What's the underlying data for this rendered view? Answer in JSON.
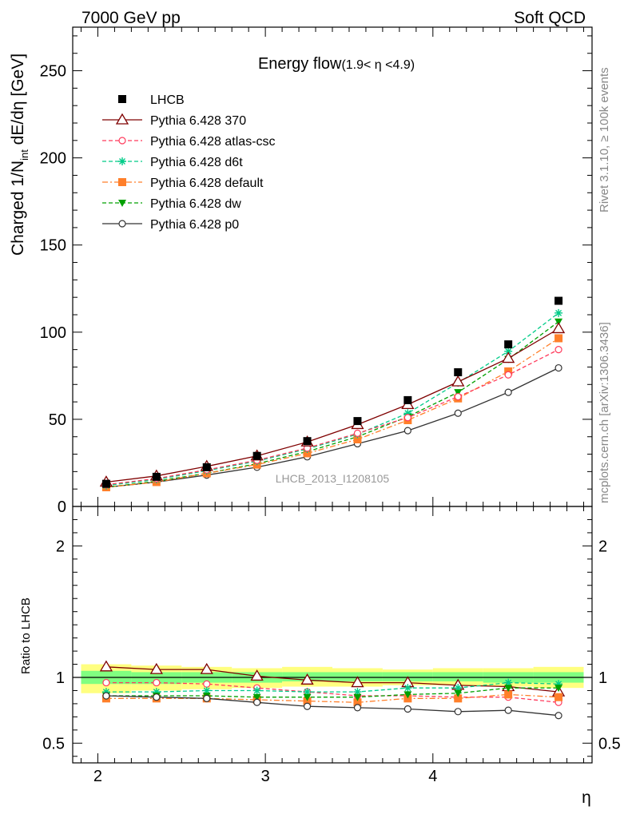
{
  "header": {
    "left": "7000 GeV pp",
    "right": "Soft QCD"
  },
  "side": {
    "rivet": "Rivet 3.1.10, ≥ 100k events",
    "mcplots": "mcplots.cern.ch [arXiv:1306.3436]"
  },
  "colors": {
    "data": "#000000",
    "p370": "#7f0000",
    "atlas": "#ff3b5c",
    "d6t": "#00cc88",
    "default": "#ff7f2a",
    "dw": "#00a000",
    "p0": "#333333",
    "band_yellow": "#ffff80",
    "band_green": "#80ff80"
  },
  "chart_data": [
    {
      "type": "line",
      "title": "Energy flow",
      "title_suffix": "(1.9< η <4.9)",
      "ylabel_main": "Charged 1/N",
      "ylabel_sub": "int",
      "ylabel_rest": " dE/dη [GeV]",
      "watermark": "LHCB_2013_I1208105",
      "xlim": [
        1.85,
        4.95
      ],
      "ylim": [
        0,
        275
      ],
      "yticks": [
        0,
        50,
        100,
        150,
        200,
        250
      ],
      "x": [
        2.05,
        2.35,
        2.65,
        2.95,
        3.25,
        3.55,
        3.85,
        4.15,
        4.45,
        4.75
      ],
      "series": [
        {
          "key": "data",
          "name": "LHCB",
          "marker": "square-filled",
          "values": [
            13.0,
            17.0,
            22.5,
            29.0,
            37.5,
            49.0,
            61.0,
            77.0,
            93.0,
            118.0
          ]
        },
        {
          "key": "p370",
          "name": "Pythia 6.428 370",
          "marker": "triangle-open",
          "line": "solid",
          "values": [
            14.0,
            17.5,
            23.0,
            29.0,
            37.0,
            47.0,
            58.5,
            71.5,
            85.0,
            102.0
          ]
        },
        {
          "key": "atlas",
          "name": "Pythia 6.428 atlas-csc",
          "marker": "circle-open",
          "line": "dashed",
          "values": [
            12.5,
            16.0,
            21.0,
            26.5,
            33.5,
            42.0,
            51.0,
            63.0,
            75.5,
            90.0
          ]
        },
        {
          "key": "d6t",
          "name": "Pythia 6.428 d6t",
          "marker": "star",
          "line": "dashed",
          "values": [
            12.0,
            15.5,
            20.5,
            26.0,
            33.0,
            41.5,
            53.5,
            71.0,
            89.0,
            111.0
          ]
        },
        {
          "key": "default",
          "name": "Pythia 6.428 default",
          "marker": "square-filled",
          "line": "dashdot",
          "values": [
            11.0,
            14.0,
            19.0,
            24.0,
            30.5,
            38.5,
            49.5,
            62.0,
            77.5,
            96.5
          ]
        },
        {
          "key": "dw",
          "name": "Pythia 6.428 dw",
          "marker": "triangle-down-filled",
          "line": "dashed",
          "values": [
            11.0,
            14.5,
            19.0,
            24.5,
            31.5,
            40.0,
            51.5,
            65.5,
            84.5,
            106.0
          ]
        },
        {
          "key": "p0",
          "name": "Pythia 6.428 p0",
          "marker": "circle-open",
          "line": "solid",
          "values": [
            11.0,
            14.0,
            18.0,
            22.5,
            28.5,
            36.0,
            43.5,
            53.5,
            65.5,
            79.5
          ]
        }
      ]
    },
    {
      "type": "line",
      "ylabel": "Ratio to LHCB",
      "xlabel": "η",
      "xlim": [
        1.85,
        4.95
      ],
      "ylim": [
        0.35,
        2.3
      ],
      "yticks": [
        0.5,
        1,
        2
      ],
      "ytick_labels": [
        "0.5",
        "1",
        "2"
      ],
      "xticks": [
        2,
        3,
        4
      ],
      "ref_line": 1,
      "band_edges": [
        1.9,
        2.2,
        2.5,
        2.8,
        3.1,
        3.4,
        3.7,
        4.0,
        4.3,
        4.6,
        4.9
      ],
      "band_yellow": [
        [
          0.88,
          1.1
        ],
        [
          0.9,
          1.09
        ],
        [
          0.91,
          1.08
        ],
        [
          0.92,
          1.07
        ],
        [
          0.93,
          1.08
        ],
        [
          0.93,
          1.07
        ],
        [
          0.94,
          1.06
        ],
        [
          0.94,
          1.07
        ],
        [
          0.93,
          1.07
        ],
        [
          0.92,
          1.08
        ]
      ],
      "band_green": [
        [
          0.95,
          1.05
        ],
        [
          0.95,
          1.04
        ],
        [
          0.96,
          1.04
        ],
        [
          0.96,
          1.04
        ],
        [
          0.97,
          1.04
        ],
        [
          0.97,
          1.04
        ],
        [
          0.97,
          1.04
        ],
        [
          0.97,
          1.04
        ],
        [
          0.96,
          1.04
        ],
        [
          0.96,
          1.04
        ]
      ],
      "x": [
        2.05,
        2.35,
        2.65,
        2.95,
        3.25,
        3.55,
        3.85,
        4.15,
        4.45,
        4.75
      ],
      "series": [
        {
          "key": "p370",
          "values": [
            1.08,
            1.06,
            1.06,
            1.01,
            0.98,
            0.96,
            0.96,
            0.94,
            0.93,
            0.89
          ]
        },
        {
          "key": "atlas",
          "values": [
            0.96,
            0.96,
            0.95,
            0.92,
            0.89,
            0.86,
            0.86,
            0.85,
            0.85,
            0.81
          ]
        },
        {
          "key": "d6t",
          "values": [
            0.89,
            0.89,
            0.9,
            0.9,
            0.89,
            0.89,
            0.92,
            0.92,
            0.96,
            0.95
          ]
        },
        {
          "key": "default",
          "values": [
            0.84,
            0.84,
            0.84,
            0.83,
            0.82,
            0.81,
            0.84,
            0.84,
            0.87,
            0.85
          ]
        },
        {
          "key": "dw",
          "values": [
            0.86,
            0.86,
            0.86,
            0.85,
            0.85,
            0.85,
            0.87,
            0.88,
            0.92,
            0.92
          ]
        },
        {
          "key": "p0",
          "values": [
            0.86,
            0.85,
            0.84,
            0.81,
            0.78,
            0.77,
            0.76,
            0.74,
            0.75,
            0.71
          ]
        }
      ]
    }
  ]
}
